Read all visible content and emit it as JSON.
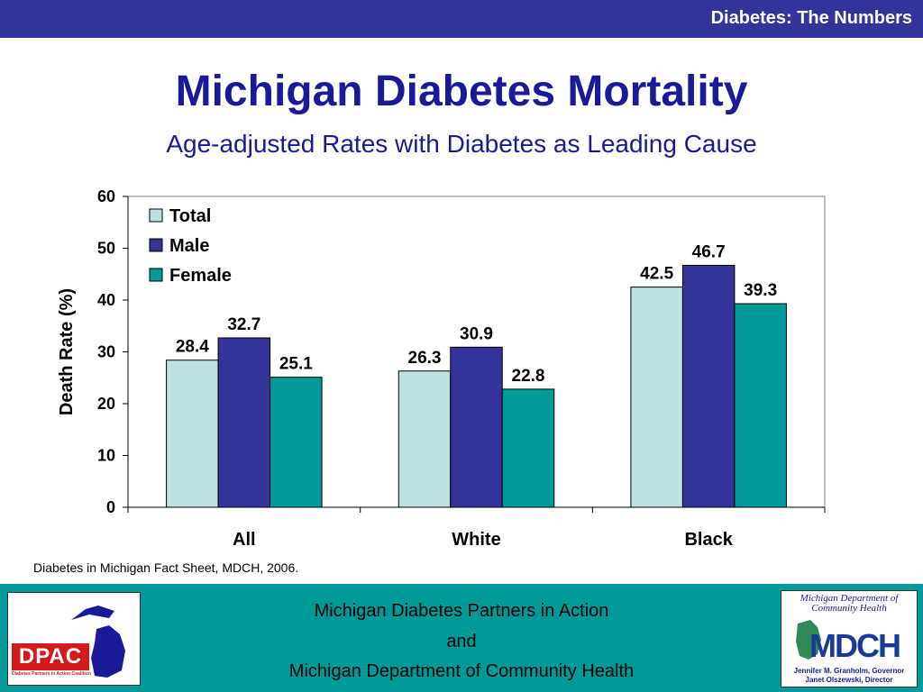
{
  "header": {
    "bar_text": "Diabetes: The Numbers"
  },
  "title": "Michigan Diabetes Mortality",
  "subtitle": "Age-adjusted Rates with Diabetes as Leading Cause",
  "source_note": "Diabetes in Michigan Fact Sheet, MDCH, 2006.",
  "footer": {
    "line1": "Michigan Diabetes Partners in Action",
    "line2": "and",
    "line3": "Michigan Department of Community Health",
    "left_logo": {
      "text": "DPAC",
      "tagline": "Diabetes Partners in Action Coalition"
    },
    "right_logo": {
      "heading": "Michigan Department of Community Health",
      "mark": "MDCH",
      "line1": "Jennifer M. Granholm, Governor",
      "line2": "Janet Olszewski, Director"
    }
  },
  "colors": {
    "header_bar": "#333399",
    "title": "#1a1a99",
    "footer": "#009999",
    "total": "#bfe0e0",
    "male": "#333399",
    "female": "#009999"
  },
  "chart_data": {
    "type": "bar",
    "categories": [
      "All",
      "White",
      "Black"
    ],
    "series": [
      {
        "name": "Total",
        "values": [
          28.4,
          26.3,
          42.5
        ]
      },
      {
        "name": "Male",
        "values": [
          32.7,
          30.9,
          46.7
        ]
      },
      {
        "name": "Female",
        "values": [
          25.1,
          22.8,
          39.3
        ]
      }
    ],
    "ylabel": "Death Rate (%)",
    "xlabel": "",
    "ylim": [
      0,
      60
    ],
    "yticks": [
      0,
      10,
      20,
      30,
      40,
      50,
      60
    ],
    "legend": "top-left",
    "grid": false,
    "data_labels": true
  }
}
